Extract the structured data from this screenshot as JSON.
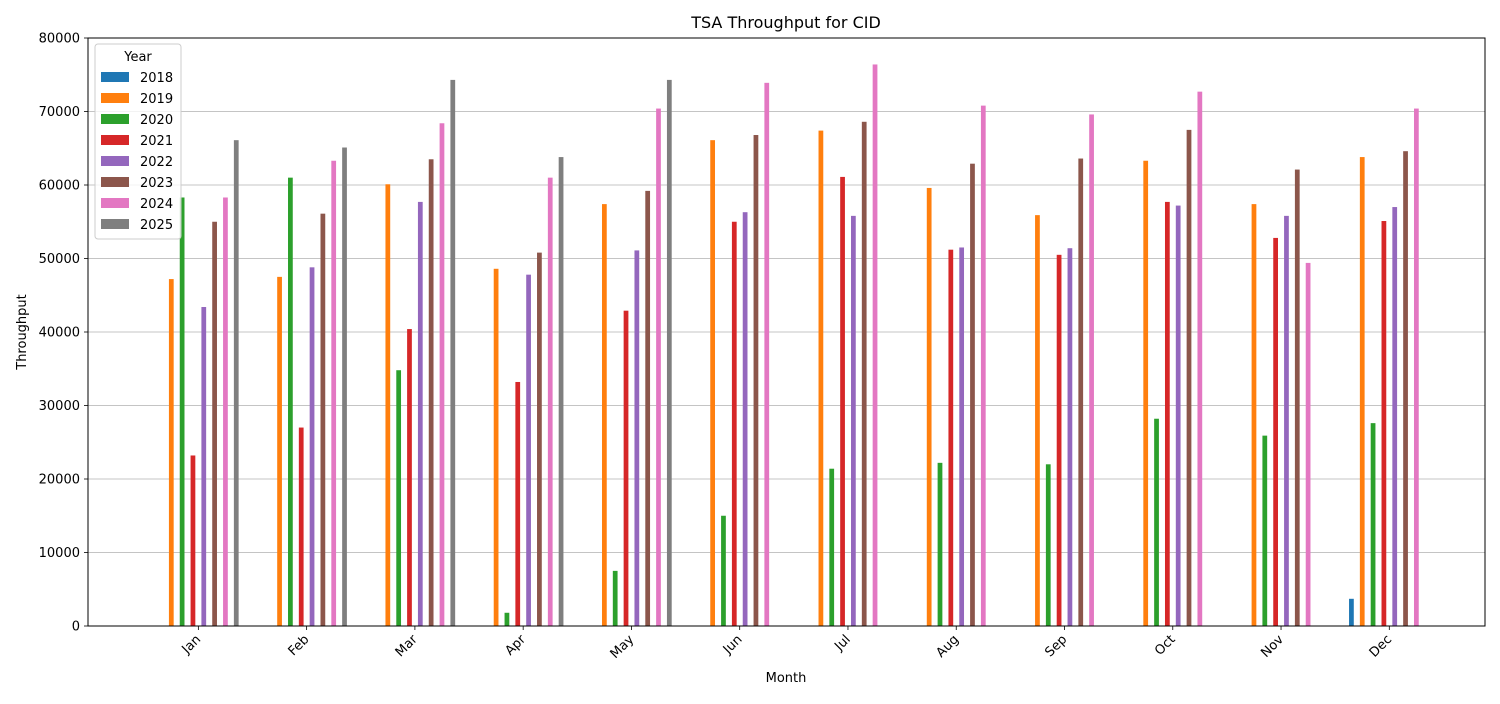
{
  "chart_data": {
    "type": "bar",
    "title": "TSA Throughput for CID",
    "xlabel": "Month",
    "ylabel": "Throughput",
    "ylim": [
      0,
      80000
    ],
    "yticks": [
      0,
      10000,
      20000,
      30000,
      40000,
      50000,
      60000,
      70000,
      80000
    ],
    "grid": "horizontal",
    "legend": {
      "title": "Year",
      "placement": "top-left"
    },
    "categories": [
      "Jan",
      "Feb",
      "Mar",
      "Apr",
      "May",
      "Jun",
      "Jul",
      "Aug",
      "Sep",
      "Oct",
      "Nov",
      "Dec"
    ],
    "series": [
      {
        "name": "2018",
        "color": "#1f77b4",
        "values": [
          null,
          null,
          null,
          null,
          null,
          null,
          null,
          null,
          null,
          null,
          null,
          3700
        ]
      },
      {
        "name": "2019",
        "color": "#ff7f0e",
        "values": [
          47200,
          47500,
          60100,
          48600,
          57400,
          66100,
          67400,
          59600,
          55900,
          63300,
          57400,
          63800
        ]
      },
      {
        "name": "2020",
        "color": "#2ca02c",
        "values": [
          58300,
          61000,
          34800,
          1800,
          7500,
          15000,
          21400,
          22200,
          22000,
          28200,
          25900,
          27600
        ]
      },
      {
        "name": "2021",
        "color": "#d62728",
        "values": [
          23200,
          27000,
          40400,
          33200,
          42900,
          55000,
          61100,
          51200,
          50500,
          57700,
          52800,
          55100
        ]
      },
      {
        "name": "2022",
        "color": "#9467bd",
        "values": [
          43400,
          48800,
          57700,
          47800,
          51100,
          56300,
          55800,
          51500,
          51400,
          57200,
          55800,
          57000
        ]
      },
      {
        "name": "2023",
        "color": "#8c564b",
        "values": [
          55000,
          56100,
          63500,
          50800,
          59200,
          66800,
          68600,
          62900,
          63600,
          67500,
          62100,
          64600
        ]
      },
      {
        "name": "2024",
        "color": "#e377c2",
        "values": [
          58300,
          63300,
          68400,
          61000,
          70400,
          73900,
          76400,
          70800,
          69600,
          72700,
          49400,
          70400
        ]
      },
      {
        "name": "2025",
        "color": "#7f7f7f",
        "values": [
          66100,
          65100,
          74300,
          63800,
          74300,
          null,
          null,
          null,
          null,
          null,
          null,
          null
        ]
      }
    ]
  }
}
